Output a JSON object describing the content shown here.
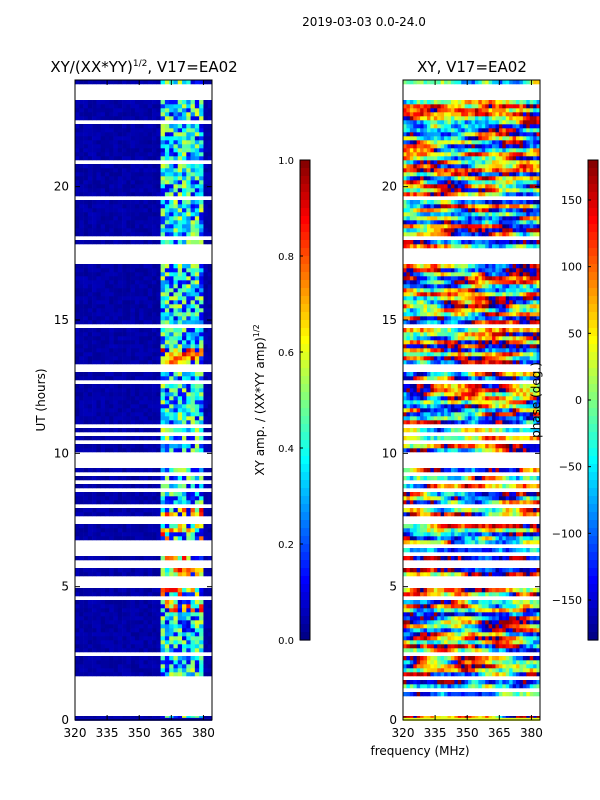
{
  "figure": {
    "suptitle": "2019-03-03 0.0-24.0",
    "xlabel": "frequency (MHz)"
  },
  "chart_data": [
    {
      "type": "heatmap",
      "id": "amp",
      "title_main": "XY/(XX*YY)",
      "title_sup": "1/2",
      "title_tail": ", V17=EA02",
      "ylabel": "UT (hours)",
      "xlim": [
        320,
        384
      ],
      "ylim": [
        0,
        24
      ],
      "xticks": [
        "320",
        "335",
        "350",
        "365",
        "380"
      ],
      "xtick_values": [
        320,
        335,
        350,
        365,
        380
      ],
      "yticks": [
        "0",
        "5",
        "10",
        "15",
        "20"
      ],
      "ytick_values": [
        0,
        5,
        10,
        15,
        20
      ],
      "colorbar": {
        "label_main": "XY amp. / (XX*YY amp)",
        "label_sup": "1/2",
        "range": [
          0.0,
          1.0
        ],
        "ticks": [
          "0.0",
          "0.2",
          "0.4",
          "0.6",
          "0.8",
          "1.0"
        ],
        "tick_values": [
          0.0,
          0.2,
          0.4,
          0.6,
          0.8,
          1.0
        ],
        "colormap": "jet"
      }
    },
    {
      "type": "heatmap",
      "id": "phase",
      "title_main": "XY, V17=EA02",
      "xlim": [
        320,
        384
      ],
      "ylim": [
        0,
        24
      ],
      "xticks": [
        "320",
        "335",
        "350",
        "365",
        "380"
      ],
      "xtick_values": [
        320,
        335,
        350,
        365,
        380
      ],
      "yticks": [
        "0",
        "5",
        "10",
        "15",
        "20"
      ],
      "ytick_values": [
        0,
        5,
        10,
        15,
        20
      ],
      "colorbar": {
        "label_main": "phase (deg.)",
        "range": [
          -180,
          180
        ],
        "ticks": [
          "−150",
          "−100",
          "−50",
          "0",
          "50",
          "100",
          "150"
        ],
        "tick_values": [
          -150,
          -100,
          -50,
          0,
          50,
          100,
          150
        ],
        "colormap": "jet"
      }
    }
  ]
}
